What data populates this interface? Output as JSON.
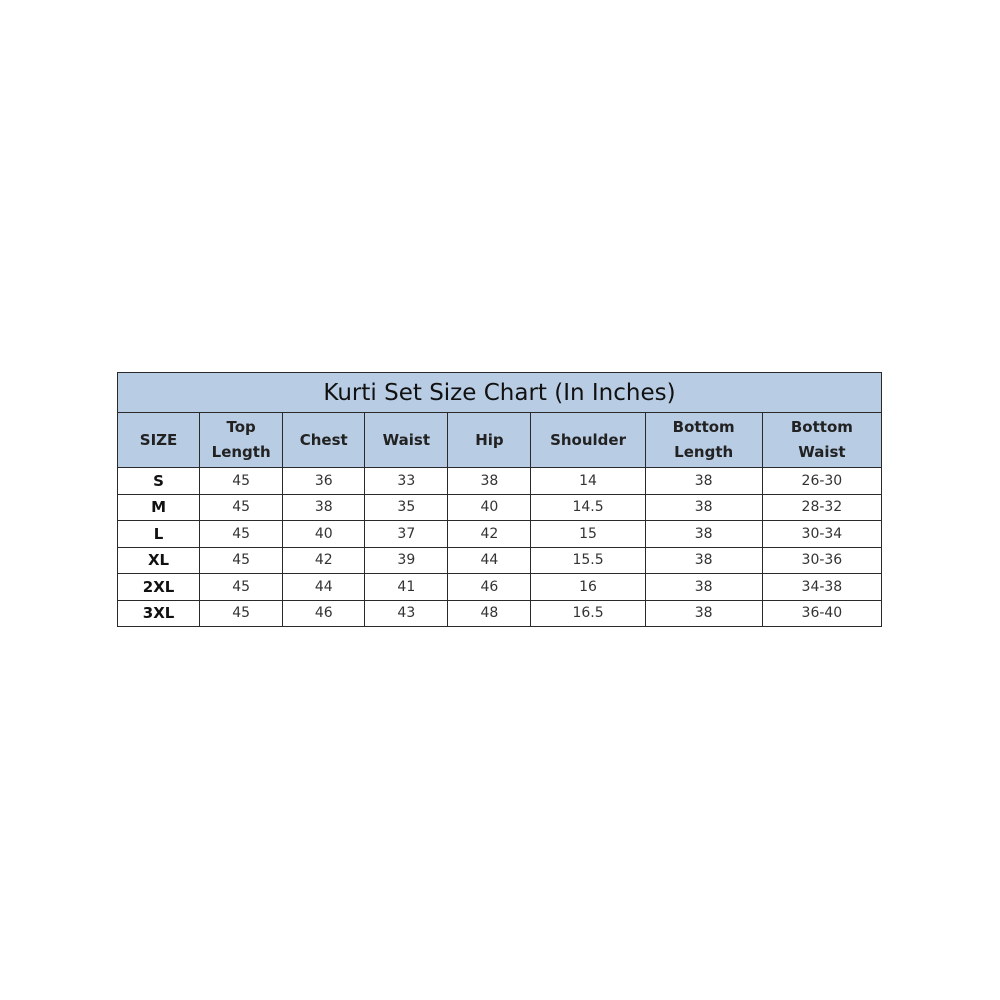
{
  "title": "Kurti Set Size Chart (In Inches)",
  "colors": {
    "header_bg": "#b8cce4",
    "border": "#2a2a2a"
  },
  "chart_data": {
    "type": "table",
    "title": "Kurti Set Size Chart (In Inches)",
    "columns": [
      "SIZE",
      "Top Length",
      "Chest",
      "Waist",
      "Hip",
      "Shoulder",
      "Bottom Length",
      "Bottom Waist"
    ],
    "rows": [
      [
        "S",
        "45",
        "36",
        "33",
        "38",
        "14",
        "38",
        "26-30"
      ],
      [
        "M",
        "45",
        "38",
        "35",
        "40",
        "14.5",
        "38",
        "28-32"
      ],
      [
        "L",
        "45",
        "40",
        "37",
        "42",
        "15",
        "38",
        "30-34"
      ],
      [
        "XL",
        "45",
        "42",
        "39",
        "44",
        "15.5",
        "38",
        "30-36"
      ],
      [
        "2XL",
        "45",
        "44",
        "41",
        "46",
        "16",
        "38",
        "34-38"
      ],
      [
        "3XL",
        "45",
        "46",
        "43",
        "48",
        "16.5",
        "38",
        "36-40"
      ]
    ]
  }
}
